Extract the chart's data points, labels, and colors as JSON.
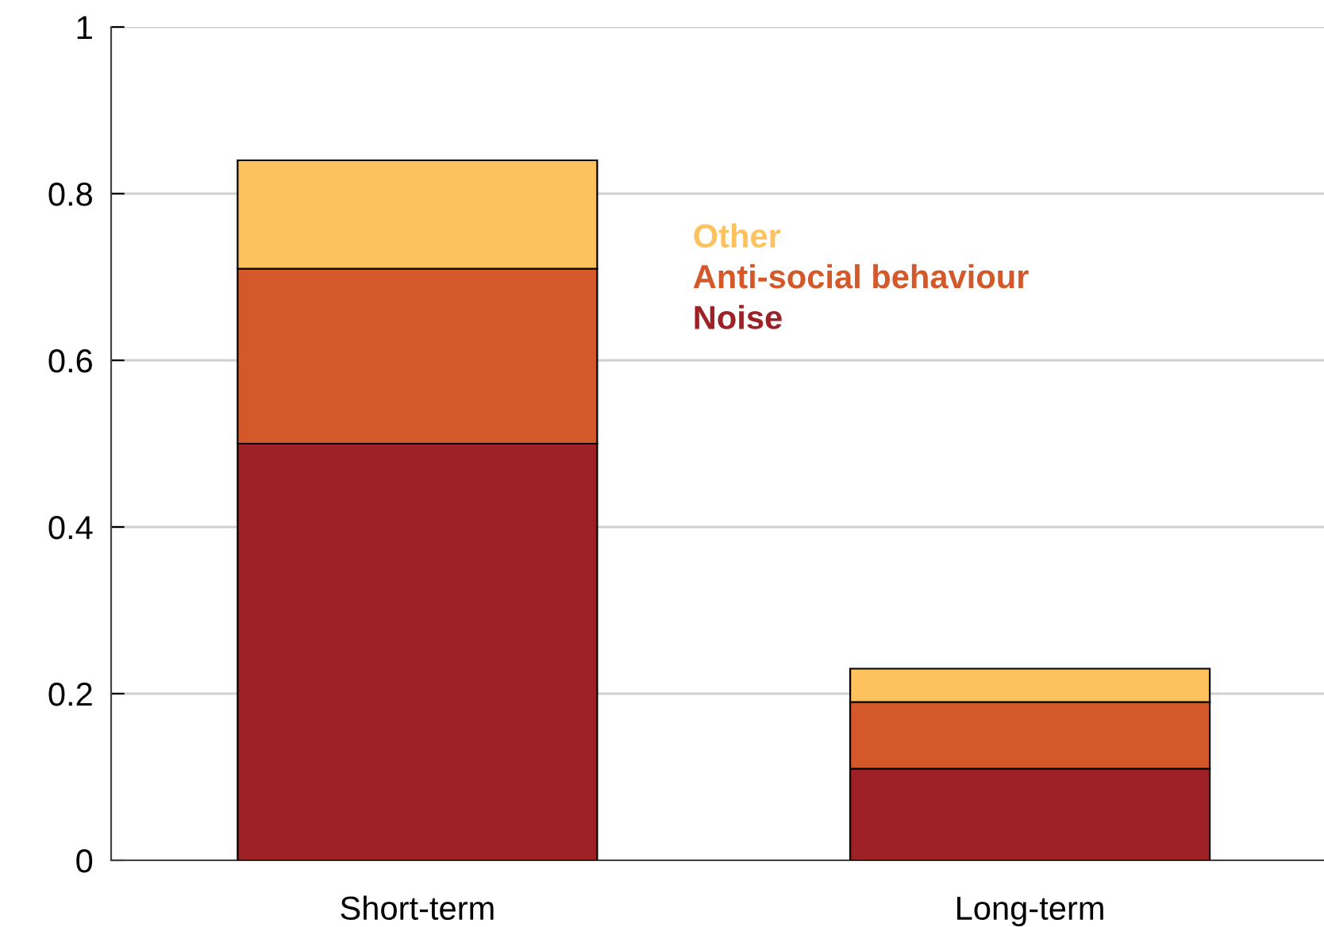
{
  "chart_data": {
    "type": "bar",
    "stacked": true,
    "categories": [
      "Short-term",
      "Long-term"
    ],
    "series": [
      {
        "name": "Noise",
        "color": "#9e2127",
        "values": [
          0.5,
          0.11
        ]
      },
      {
        "name": "Anti-social behaviour",
        "color": "#d4592a",
        "values": [
          0.21,
          0.08
        ]
      },
      {
        "name": "Other",
        "color": "#fdc25e",
        "values": [
          0.13,
          0.04
        ]
      }
    ],
    "ylim": [
      0,
      1
    ],
    "yticks": [
      0,
      0.2,
      0.4,
      0.6,
      0.8,
      1
    ],
    "grid": "y",
    "legend": "top"
  }
}
